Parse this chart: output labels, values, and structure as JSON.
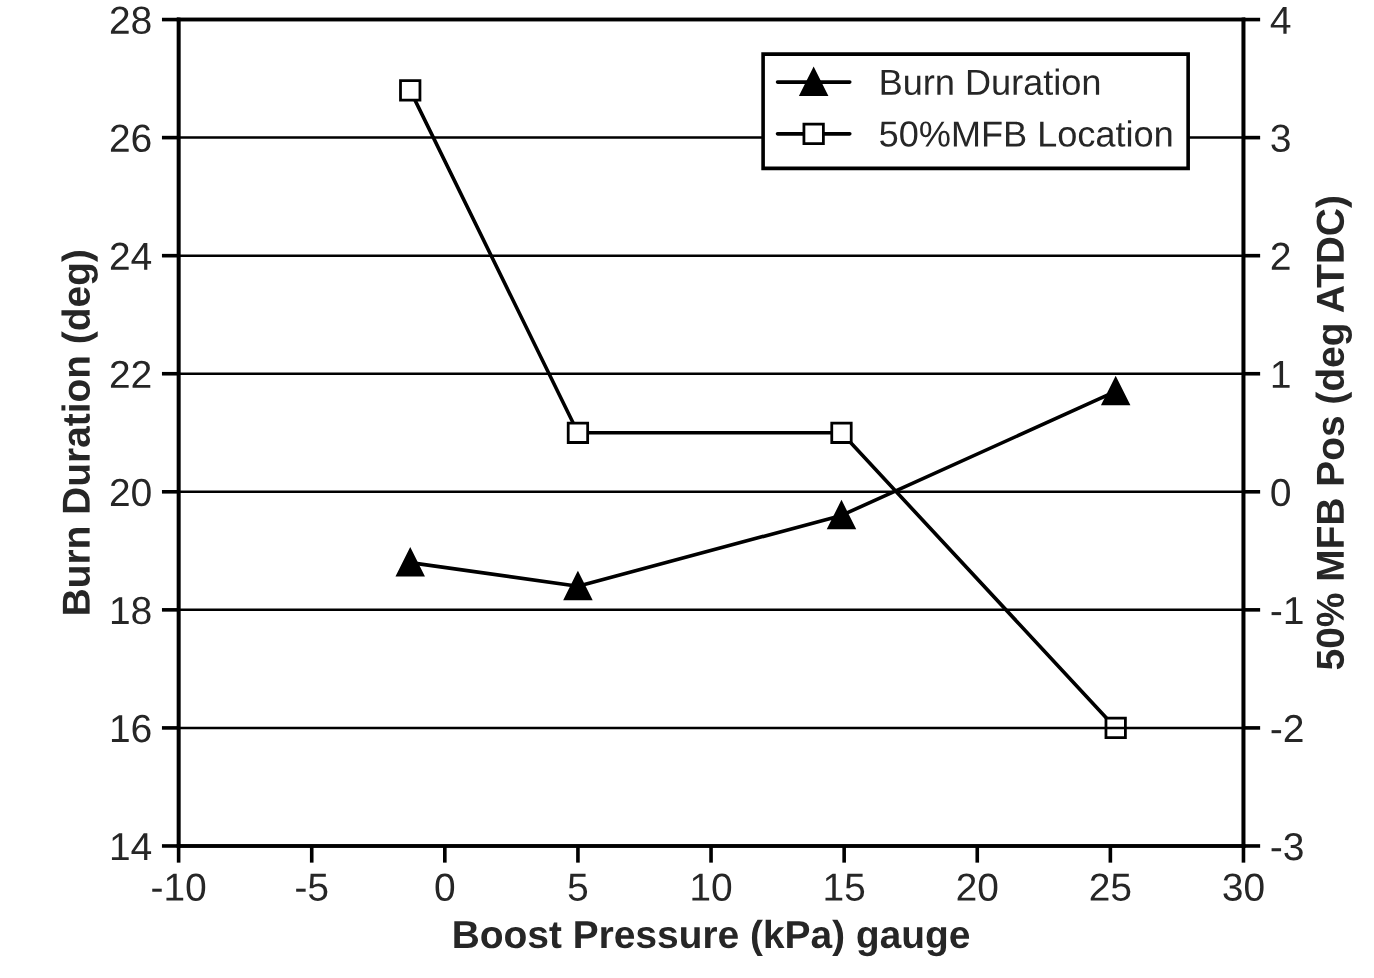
{
  "chart_data": {
    "type": "line",
    "xlabel": "Boost Pressure (kPa) gauge",
    "ylabel": "Burn Duration (deg)",
    "y2label": "50% MFB Pos (deg ATDC)",
    "x": [
      -1.3,
      5,
      14.9,
      25.2
    ],
    "series": [
      {
        "name": "Burn Duration",
        "color": "#000000",
        "marker": "triangle",
        "values": [
          18.8,
          18.4,
          19.6,
          21.7
        ]
      },
      {
        "name": "50%MFB Location",
        "color": "#000000",
        "marker": "square",
        "axis": "y2",
        "values": [
          3.4,
          0.5,
          0.5,
          -2
        ]
      }
    ],
    "xlim": [
      -10,
      30
    ],
    "xticks": [
      -10,
      -5,
      0,
      5,
      10,
      15,
      20,
      25,
      30
    ],
    "ylim": [
      14,
      28
    ],
    "yticks": [
      14,
      16,
      18,
      20,
      22,
      24,
      26,
      28
    ],
    "y2lim": [
      -3,
      4
    ],
    "y2ticks": [
      -3,
      -2,
      -1,
      0,
      1,
      2,
      3,
      4
    ],
    "grid": "y",
    "legend": "top right",
    "line_style": "solid"
  }
}
